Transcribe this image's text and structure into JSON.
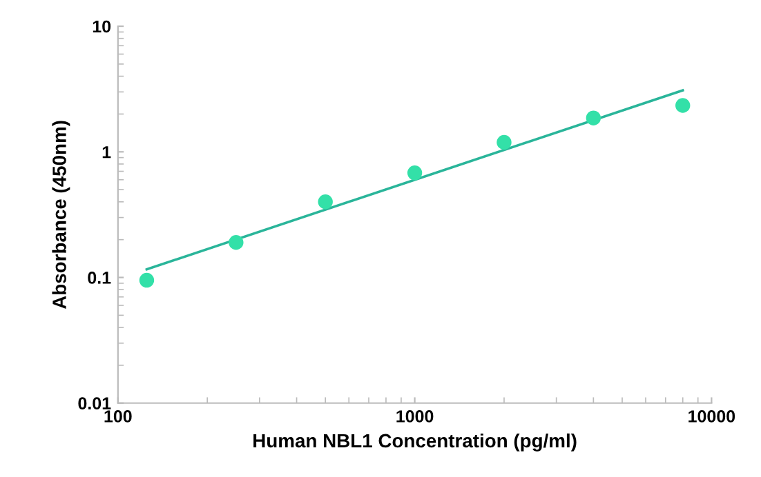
{
  "chart_data": {
    "type": "scatter",
    "xlabel": "Human NBL1 Concentration (pg/ml)",
    "ylabel": "Absorbance (450nm)",
    "log": "xy",
    "xlim": [
      100,
      10000
    ],
    "ylim": [
      0.01,
      10
    ],
    "xticks": [
      100,
      1000,
      10000
    ],
    "yticks": [
      0.01,
      0.1,
      1,
      10
    ],
    "grid": false,
    "legend": false,
    "series": [
      {
        "color": "#33e0a8",
        "marker": "circle",
        "x": [
          125,
          250,
          500,
          1000,
          2000,
          4000,
          8000
        ],
        "values": [
          0.095,
          0.19,
          0.4,
          0.68,
          1.19,
          1.86,
          2.34
        ]
      },
      {
        "type": "line",
        "color": "#2ab59a",
        "marker": "none",
        "x": [
          125,
          8000
        ],
        "values": [
          0.116,
          3.09
        ]
      }
    ]
  }
}
